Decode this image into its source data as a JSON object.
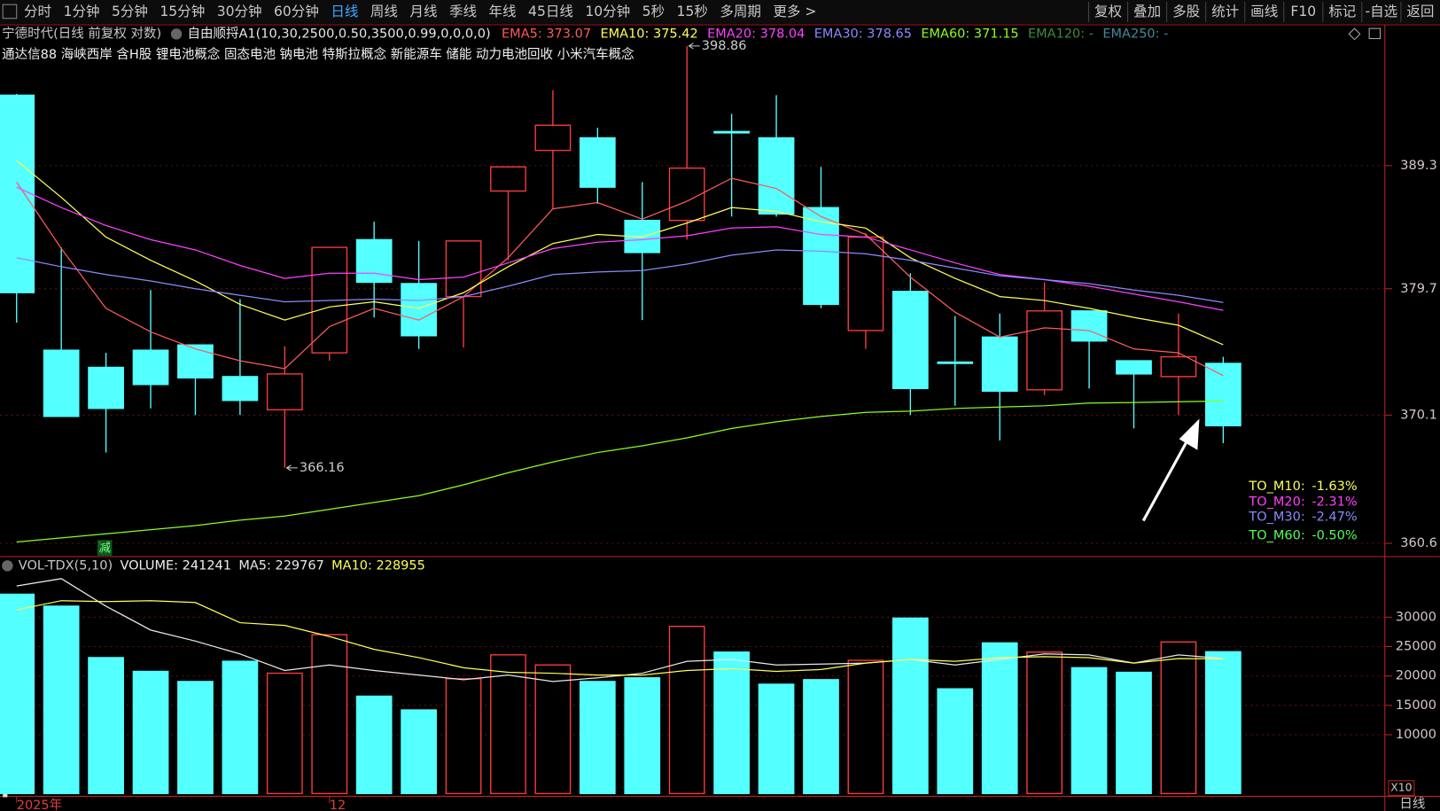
{
  "toolbar": {
    "left": [
      "分时",
      "1分钟",
      "5分钟",
      "15分钟",
      "30分钟",
      "60分钟",
      "日线",
      "周线",
      "月线",
      "季线",
      "年线",
      "45日线",
      "10分钟",
      "5秒",
      "15秒",
      "多周期",
      "更多 >"
    ],
    "active": "日线",
    "right": [
      "复权",
      "叠加",
      "多股",
      "统计",
      "画线",
      "F10",
      "标记",
      "-自选",
      "返回"
    ]
  },
  "header": {
    "stock_title": "宁德时代(日线 前复权 对数)",
    "indicator": "自由顺捋A1(10,30,2500,0.50,3500,0.99,0,0,0,0)",
    "concepts": "通达信88 海峡西岸 含H股 锂电池概念 固态电池 钠电池 特斯拉概念 新能源车 储能 动力电池回收 小米汽车概念",
    "marker": "减"
  },
  "footer": {
    "period": "日线",
    "unit": "X10"
  },
  "chart_data": [
    {
      "type": "candlestick",
      "log_scale": true,
      "grid": true,
      "up_color": "#ff3c3c",
      "down_color": "#54ffff",
      "categories": [
        "2025年",
        null,
        null,
        null,
        null,
        null,
        null,
        "12",
        null,
        null,
        null,
        null,
        null,
        null,
        null,
        null,
        null,
        null,
        null,
        null,
        null,
        null,
        null,
        null,
        null,
        null,
        null,
        null
      ],
      "open": [
        394.9,
        375.0,
        373.7,
        375.0,
        375.4,
        373.0,
        370.5,
        374.8,
        383.5,
        380.1,
        379.1,
        387.3,
        390.5,
        391.5,
        385.0,
        385.0,
        392.0,
        391.5,
        386.0,
        376.5,
        379.5,
        374.1,
        376.0,
        372.0,
        378.0,
        374.2,
        373.0,
        374.0
      ],
      "high": [
        395.0,
        382.9,
        374.8,
        379.6,
        375.4,
        378.9,
        375.3,
        382.9,
        384.9,
        383.4,
        383.4,
        389.2,
        395.3,
        392.3,
        388.0,
        398.86,
        393.4,
        394.9,
        389.2,
        384.0,
        380.9,
        377.6,
        377.8,
        380.2,
        378.0,
        374.2,
        377.8,
        374.5
      ],
      "low": [
        377.1,
        370.0,
        367.3,
        370.6,
        370.1,
        370.1,
        366.16,
        374.2,
        377.5,
        375.1,
        375.2,
        381.9,
        385.9,
        386.3,
        377.3,
        383.5,
        385.3,
        385.3,
        378.2,
        375.1,
        370.1,
        370.8,
        368.2,
        371.6,
        372.1,
        369.1,
        370.1,
        368.0
      ],
      "close": [
        379.4,
        370.0,
        370.6,
        372.4,
        372.9,
        371.2,
        373.2,
        382.9,
        380.2,
        376.1,
        383.4,
        389.2,
        392.5,
        387.6,
        382.5,
        389.1,
        391.9,
        385.5,
        378.5,
        383.7,
        372.1,
        374.0,
        371.9,
        378.0,
        375.7,
        373.2,
        374.5,
        369.3
      ],
      "series": [
        {
          "name": "EMA5: 373.07",
          "color": "#ff5a5a",
          "values": [
            388.0,
            382.8,
            378.2,
            376.4,
            375.1,
            374.2,
            373.6,
            376.8,
            378.2,
            377.3,
            379.1,
            382.1,
            385.9,
            386.4,
            385.1,
            386.5,
            388.3,
            387.5,
            385.3,
            383.9,
            380.6,
            377.9,
            376.0,
            376.7,
            376.5,
            375.1,
            374.8,
            373.07
          ]
        },
        {
          "name": "EMA10: 375.42",
          "color": "#ffff54",
          "values": [
            389.7,
            386.8,
            383.7,
            381.9,
            380.3,
            378.5,
            377.3,
            378.3,
            378.7,
            378.2,
            379.4,
            381.4,
            383.2,
            383.9,
            383.7,
            384.8,
            386.0,
            385.7,
            384.9,
            384.4,
            382.1,
            380.5,
            379.1,
            378.8,
            378.2,
            377.5,
            376.9,
            375.42
          ]
        },
        {
          "name": "EMA20: 378.04",
          "color": "#ff40ff",
          "values": [
            387.6,
            386.0,
            384.6,
            383.5,
            382.7,
            381.5,
            380.5,
            380.9,
            380.9,
            380.4,
            380.6,
            381.7,
            382.8,
            383.3,
            383.5,
            383.8,
            384.4,
            384.5,
            383.9,
            383.7,
            382.7,
            381.7,
            380.8,
            380.4,
            379.9,
            379.3,
            378.7,
            378.04
          ]
        },
        {
          "name": "EMA30: 378.65",
          "color": "#8a8aff",
          "values": [
            382.1,
            381.4,
            380.8,
            380.3,
            379.7,
            379.2,
            378.7,
            378.8,
            378.9,
            378.8,
            379.1,
            379.9,
            380.8,
            381.0,
            381.1,
            381.6,
            382.3,
            382.7,
            382.6,
            382.4,
            381.9,
            381.3,
            380.7,
            380.4,
            380.1,
            379.6,
            379.2,
            378.65
          ]
        },
        {
          "name": "EMA60: 371.15",
          "color": "#8cff1e",
          "values": [
            360.7,
            361.0,
            361.3,
            361.6,
            361.9,
            362.3,
            362.6,
            363.1,
            363.6,
            364.1,
            364.9,
            365.8,
            366.6,
            367.3,
            367.8,
            368.4,
            369.1,
            369.6,
            370.0,
            370.3,
            370.4,
            370.6,
            370.7,
            370.8,
            371.0,
            371.05,
            371.1,
            371.15
          ]
        }
      ],
      "extra_legend": [
        {
          "text": "EMA120: -",
          "color": "#3c8c3c"
        },
        {
          "text": "EMA250: -",
          "color": "#3c8c9c"
        }
      ],
      "annotations": [
        {
          "label": "398.86",
          "value": 398.86
        },
        {
          "label": "366.16",
          "value": 366.16
        }
      ],
      "side_stats": [
        {
          "label": "TO_M10:",
          "value": -1.63,
          "value_label": "-1.63%",
          "color": "#ffff54"
        },
        {
          "label": "TO_M20:",
          "value": -2.31,
          "value_label": "-2.31%",
          "color": "#ff40ff"
        },
        {
          "label": "TO_M30:",
          "value": -2.47,
          "value_label": "-2.47%",
          "color": "#8a8aff"
        },
        {
          "label": "TO_M60:",
          "value": -0.5,
          "value_label": "-0.50%",
          "color": "#54ff54"
        }
      ],
      "ylim": [
        359.7,
        400.5
      ],
      "yticks": [
        360.6,
        370.1,
        379.7,
        389.3
      ]
    },
    {
      "type": "bar",
      "title": "VOL-TDX(5,10)",
      "name": "VOLUME: 241241",
      "values": [
        33906,
        31875,
        23125,
        20781,
        19063,
        22500,
        20469,
        27031,
        16563,
        14219,
        19531,
        23594,
        21875,
        19063,
        19688,
        28438,
        24063,
        18594,
        19375,
        22656,
        29844,
        17813,
        25625,
        24063,
        21406,
        20625,
        25781,
        24124.1
      ],
      "series": [
        {
          "name": "MA5: 229767",
          "color": "#e8e8e8",
          "values": [
            35313,
            36563,
            31875,
            27813,
            25938,
            23750,
            20938,
            21875,
            20938,
            20156,
            19375,
            20156,
            19063,
            19688,
            20469,
            22500,
            22813,
            21875,
            22031,
            22188,
            22813,
            21875,
            22813,
            23750,
            23594,
            22188,
            23594,
            22976.7
          ]
        },
        {
          "name": "MA10: 228955",
          "color": "#ffff54",
          "values": [
            31250,
            32813,
            32656,
            32813,
            32500,
            29063,
            28594,
            26719,
            24531,
            23125,
            21406,
            20625,
            20469,
            20156,
            20156,
            20938,
            21250,
            20781,
            21094,
            22188,
            22813,
            22500,
            23125,
            23281,
            23125,
            22188,
            22969,
            22895.5
          ]
        }
      ],
      "ylim": [
        0,
        40150
      ],
      "yticks": [
        10000,
        15000,
        20000,
        25000,
        30000
      ],
      "grid": true
    }
  ]
}
